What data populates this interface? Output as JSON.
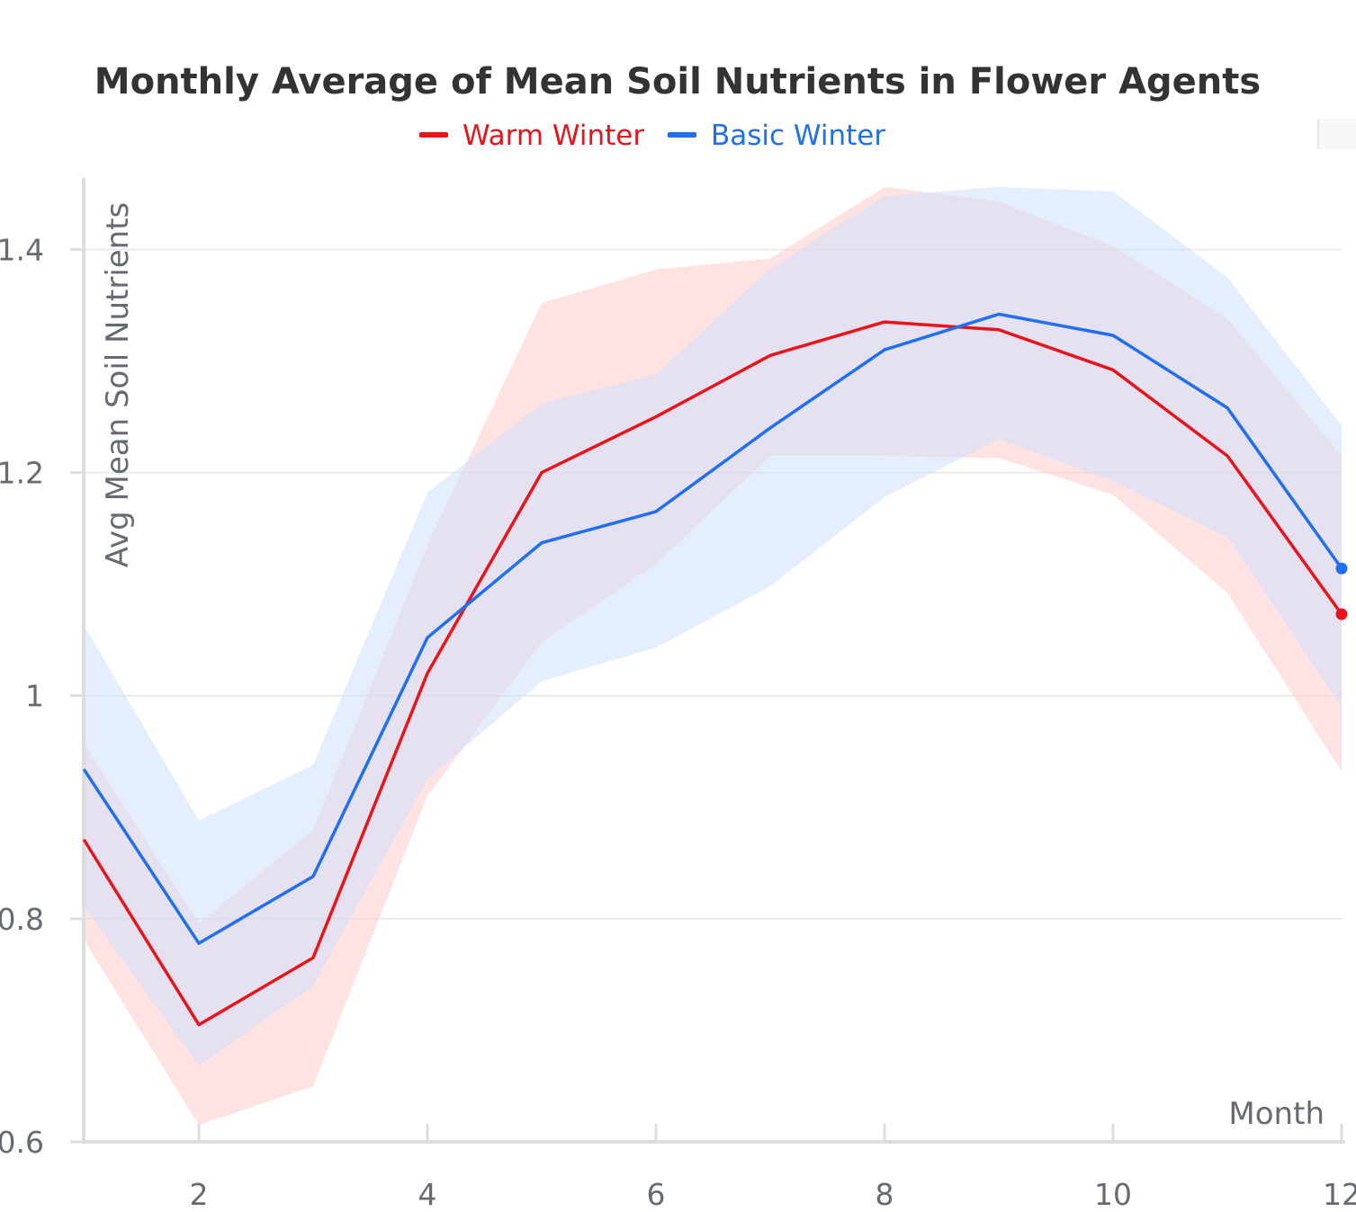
{
  "chart_data": {
    "type": "line",
    "title": "Monthly Average of Mean Soil Nutrients in Flower Agents",
    "xlabel": "Month",
    "ylabel": "Avg Mean Soil Nutrients",
    "xlim": [
      1,
      12
    ],
    "ylim": [
      0.6,
      1.46
    ],
    "x_ticks": [
      2,
      4,
      6,
      8,
      10,
      12
    ],
    "x_tick_labels": [
      "2",
      "4",
      "6",
      "8",
      "10",
      "12"
    ],
    "y_ticks": [
      0.6,
      0.8,
      1.0,
      1.2,
      1.4
    ],
    "y_tick_labels": [
      "0.6",
      "0.8",
      "1",
      "1.2",
      "1.4"
    ],
    "grid": true,
    "legend_position": "top-center",
    "x": [
      1,
      2,
      3,
      4,
      5,
      6,
      7,
      8,
      9,
      10,
      11,
      12
    ],
    "series": [
      {
        "name": "Warm Winter",
        "color": "#e8141c",
        "band_color": "#ffcccc",
        "values": [
          0.87,
          0.705,
          0.765,
          1.02,
          1.2,
          1.25,
          1.305,
          1.335,
          1.328,
          1.292,
          1.215,
          1.073
        ],
        "lower": [
          0.78,
          0.615,
          0.65,
          0.91,
          1.048,
          1.118,
          1.215,
          1.215,
          1.213,
          1.18,
          1.092,
          0.932
        ],
        "upper": [
          0.956,
          0.796,
          0.88,
          1.135,
          1.352,
          1.382,
          1.392,
          1.456,
          1.443,
          1.403,
          1.338,
          1.215
        ]
      },
      {
        "name": "Basic Winter",
        "color": "#1f6fef",
        "band_color": "#cfe0fc",
        "values": [
          0.933,
          0.778,
          0.838,
          1.052,
          1.137,
          1.165,
          1.24,
          1.31,
          1.342,
          1.323,
          1.258,
          1.114
        ],
        "lower": [
          0.81,
          0.668,
          0.74,
          0.925,
          1.013,
          1.043,
          1.098,
          1.178,
          1.23,
          1.192,
          1.142,
          0.99
        ],
        "upper": [
          1.062,
          0.888,
          0.938,
          1.182,
          1.262,
          1.288,
          1.383,
          1.448,
          1.456,
          1.452,
          1.375,
          1.242
        ]
      }
    ]
  }
}
